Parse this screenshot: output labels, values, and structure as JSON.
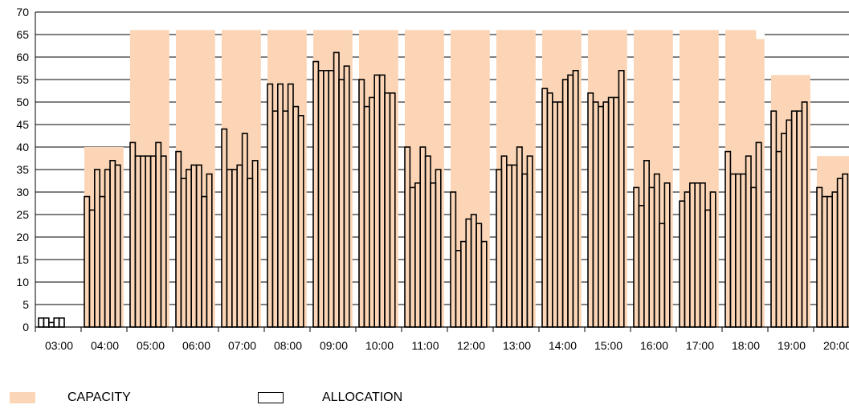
{
  "chart_data": {
    "type": "bar",
    "title": "",
    "xlabel": "",
    "ylabel": "",
    "ylim": [
      0,
      70
    ],
    "yticks": [
      0,
      5,
      10,
      15,
      20,
      25,
      30,
      35,
      40,
      45,
      50,
      55,
      60,
      65,
      70
    ],
    "grid": true,
    "legend_position": "bottom-left",
    "colors": {
      "capacity": "#fbd5b5",
      "allocation_stroke": "#000000"
    },
    "categories": [
      "03:00",
      "04:00",
      "05:00",
      "06:00",
      "07:00",
      "08:00",
      "09:00",
      "10:00",
      "11:00",
      "12:00",
      "13:00",
      "14:00",
      "15:00",
      "16:00",
      "17:00",
      "18:00",
      "19:00",
      "20:00"
    ],
    "series": [
      {
        "name": "CAPACITY",
        "values": [
          0,
          40,
          66,
          66,
          66,
          66,
          66,
          66,
          66,
          66,
          66,
          66,
          66,
          66,
          66,
          66,
          56,
          38
        ],
        "last_sub_value": [
          null,
          null,
          null,
          null,
          null,
          null,
          null,
          null,
          null,
          null,
          null,
          null,
          null,
          null,
          null,
          64,
          null,
          null
        ]
      },
      {
        "name": "ALLOCATION",
        "values": [
          [
            2,
            2,
            1,
            2,
            2
          ],
          [
            29,
            26,
            35,
            29,
            35,
            37,
            36
          ],
          [
            41,
            38,
            38,
            38,
            38,
            41,
            38
          ],
          [
            39,
            33,
            35,
            36,
            36,
            29,
            34
          ],
          [
            44,
            35,
            35,
            36,
            43,
            33,
            37
          ],
          [
            54,
            48,
            54,
            48,
            54,
            49,
            47
          ],
          [
            59,
            57,
            57,
            57,
            61,
            55,
            58
          ],
          [
            55,
            49,
            51,
            56,
            56,
            52,
            52
          ],
          [
            40,
            31,
            32,
            40,
            38,
            32,
            35
          ],
          [
            30,
            17,
            19,
            24,
            25,
            23,
            19
          ],
          [
            35,
            38,
            36,
            36,
            40,
            34,
            38
          ],
          [
            53,
            52,
            50,
            50,
            55,
            56,
            57
          ],
          [
            52,
            50,
            49,
            50,
            51,
            51,
            57
          ],
          [
            31,
            27,
            37,
            31,
            34,
            23,
            32
          ],
          [
            28,
            30,
            32,
            32,
            32,
            26,
            30
          ],
          [
            39,
            34,
            34,
            34,
            38,
            31,
            41
          ],
          [
            48,
            39,
            43,
            46,
            48,
            48,
            50
          ],
          [
            31,
            29,
            29,
            30,
            33,
            34
          ]
        ]
      }
    ]
  },
  "legend": {
    "capacity_label": "CAPACITY",
    "allocation_label": "ALLOCATION"
  }
}
